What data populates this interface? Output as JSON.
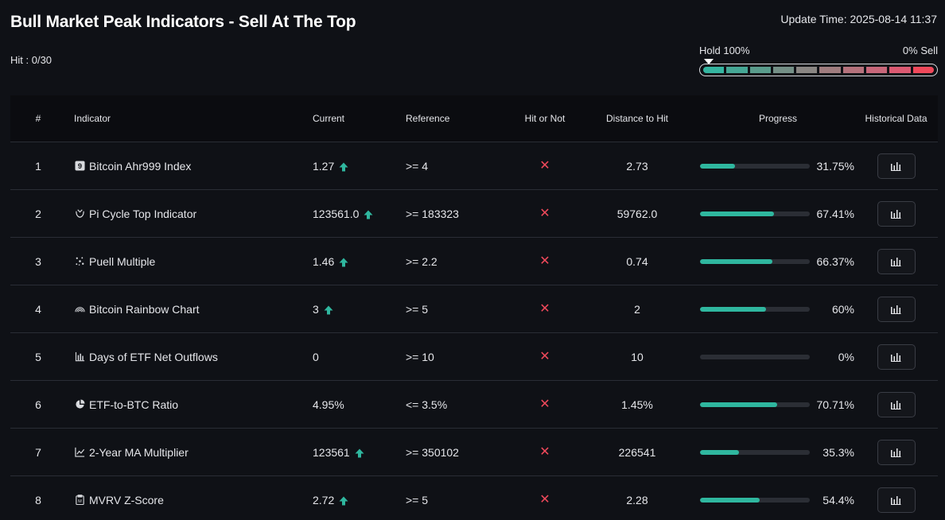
{
  "header": {
    "title": "Bull Market Peak Indicators - Sell At The Top",
    "hit_count": "Hit : 0/30",
    "update_time": "Update Time: 2025-08-14 11:37"
  },
  "meter": {
    "left_label": "Hold 100%",
    "right_label": "0% Sell",
    "segment_colors": [
      "#35b5a0",
      "#46a795",
      "#5a9c8c",
      "#748f86",
      "#8a8683",
      "#a07d7f",
      "#b5727c",
      "#c8677a",
      "#dc5a72",
      "#f0495b"
    ]
  },
  "colors": {
    "accent_green": "#2fb79f",
    "hit_x_red": "#f0495b"
  },
  "table": {
    "columns": {
      "num": "#",
      "indicator": "Indicator",
      "current": "Current",
      "reference": "Reference",
      "hit": "Hit or Not",
      "distance": "Distance to Hit",
      "progress": "Progress",
      "historical": "Historical Data"
    },
    "rows": [
      {
        "num": "1",
        "icon": "nine-badge-icon",
        "name": "Bitcoin Ahr999 Index",
        "current": "1.27",
        "up": true,
        "reference": ">= 4",
        "hit": "✕",
        "distance": "2.73",
        "progress_value": 31.75,
        "progress_text": "31.75%"
      },
      {
        "num": "2",
        "icon": "pi-cycle-icon",
        "name": "Pi Cycle Top Indicator",
        "current": "123561.0",
        "up": true,
        "reference": ">= 183323",
        "hit": "✕",
        "distance": "59762.0",
        "progress_value": 67.41,
        "progress_text": "67.41%"
      },
      {
        "num": "3",
        "icon": "sparkle-icon",
        "name": "Puell Multiple",
        "current": "1.46",
        "up": true,
        "reference": ">= 2.2",
        "hit": "✕",
        "distance": "0.74",
        "progress_value": 66.37,
        "progress_text": "66.37%"
      },
      {
        "num": "4",
        "icon": "rainbow-icon",
        "name": "Bitcoin Rainbow Chart",
        "current": "3",
        "up": true,
        "reference": ">= 5",
        "hit": "✕",
        "distance": "2",
        "progress_value": 60,
        "progress_text": "60%"
      },
      {
        "num": "5",
        "icon": "bar-chart-icon",
        "name": "Days of ETF Net Outflows",
        "current": "0",
        "up": false,
        "reference": ">= 10",
        "hit": "✕",
        "distance": "10",
        "progress_value": 0,
        "progress_text": "0%"
      },
      {
        "num": "6",
        "icon": "pie-chart-icon",
        "name": "ETF-to-BTC Ratio",
        "current": "4.95%",
        "up": false,
        "reference": "<= 3.5%",
        "hit": "✕",
        "distance": "1.45%",
        "progress_value": 70.71,
        "progress_text": "70.71%"
      },
      {
        "num": "7",
        "icon": "line-chart-icon",
        "name": "2-Year MA Multiplier",
        "current": "123561",
        "up": true,
        "reference": ">= 350102",
        "hit": "✕",
        "distance": "226541",
        "progress_value": 35.3,
        "progress_text": "35.3%"
      },
      {
        "num": "8",
        "icon": "clipboard-icon",
        "name": "MVRV Z-Score",
        "current": "2.72",
        "up": true,
        "reference": ">= 5",
        "hit": "✕",
        "distance": "2.28",
        "progress_value": 54.4,
        "progress_text": "54.4%"
      }
    ]
  }
}
